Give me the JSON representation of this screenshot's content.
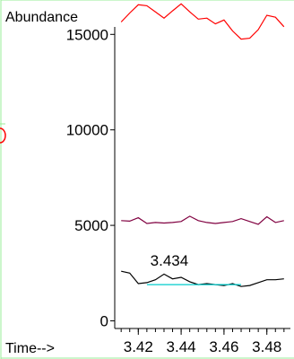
{
  "chart_data": {
    "type": "line",
    "title": "",
    "xlabel": "Time-->",
    "ylabel": "Abundance",
    "xlim": [
      3.409,
      3.491
    ],
    "ylim": [
      -400,
      16800
    ],
    "x_ticks": [
      3.42,
      3.44,
      3.46,
      3.48
    ],
    "x_tick_labels": [
      "3.42",
      "3.44",
      "3.46",
      "3.48"
    ],
    "y_ticks": [
      0,
      5000,
      10000,
      15000
    ],
    "y_tick_labels": [
      "0",
      "5000",
      "10000",
      "15000"
    ],
    "grid": false,
    "legend": "none",
    "annotations": [
      {
        "text": "3.434",
        "x": 3.4345,
        "y": 2900
      }
    ],
    "series": [
      {
        "color": "#ff0000",
        "x": [
          3.412,
          3.416,
          3.42,
          3.424,
          3.428,
          3.432,
          3.436,
          3.44,
          3.444,
          3.448,
          3.452,
          3.456,
          3.46,
          3.464,
          3.468,
          3.472,
          3.476,
          3.48,
          3.484,
          3.488
        ],
        "values": [
          15650,
          16120,
          16550,
          16500,
          16180,
          15850,
          16230,
          16600,
          16180,
          15800,
          15850,
          15550,
          15750,
          15180,
          14750,
          14800,
          15250,
          16000,
          15900,
          15400
        ]
      },
      {
        "color": "#800040",
        "x": [
          3.412,
          3.416,
          3.42,
          3.424,
          3.428,
          3.432,
          3.436,
          3.44,
          3.444,
          3.448,
          3.452,
          3.456,
          3.46,
          3.464,
          3.468,
          3.472,
          3.476,
          3.48,
          3.484,
          3.488
        ],
        "values": [
          5250,
          5220,
          5400,
          5100,
          5150,
          5120,
          5150,
          5200,
          5480,
          5250,
          5150,
          5100,
          5150,
          5200,
          5350,
          5200,
          5050,
          5450,
          5150,
          5250
        ]
      },
      {
        "color": "#000000",
        "x": [
          3.412,
          3.416,
          3.42,
          3.424,
          3.428,
          3.432,
          3.436,
          3.44,
          3.444,
          3.448,
          3.452,
          3.456,
          3.46,
          3.464,
          3.468,
          3.472,
          3.476,
          3.48,
          3.484,
          3.488
        ],
        "values": [
          2600,
          2500,
          1950,
          2000,
          2150,
          2450,
          2200,
          2280,
          2050,
          1900,
          1950,
          1900,
          1850,
          1950,
          1800,
          1850,
          2000,
          2150,
          2150,
          2200
        ]
      },
      {
        "color": "#00cccc",
        "x": [
          3.424,
          3.468
        ],
        "values": [
          1900,
          1900
        ]
      }
    ]
  }
}
